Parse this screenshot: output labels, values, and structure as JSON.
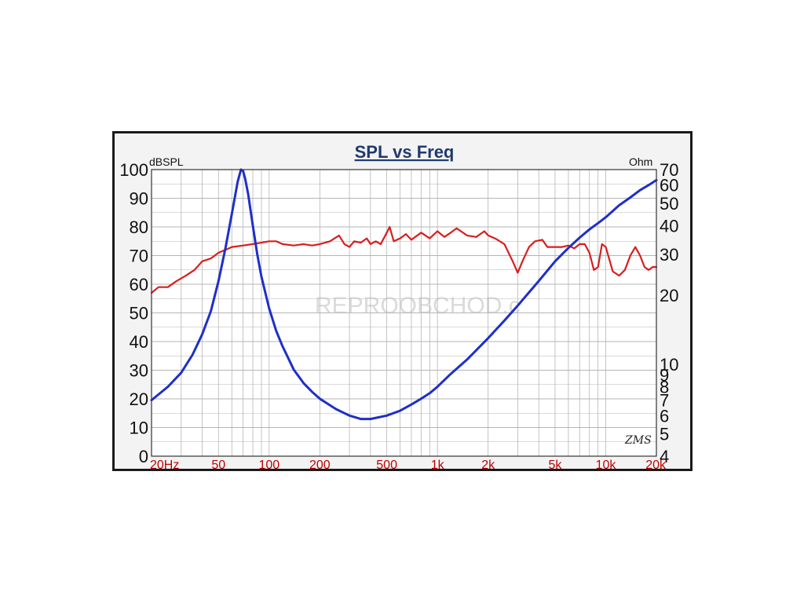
{
  "watermark": "REPROOBCHOD.c",
  "software_mark": "ZMS",
  "colors": {
    "spl": "#d81e1e",
    "impedance": "#1e2fc8",
    "title": "#1f3a6e",
    "xtick": "#c00000",
    "grid": "#b5b5b5"
  },
  "chart_data": {
    "type": "line",
    "title": "SPL vs Freq",
    "ylabel_left": "dBSPL",
    "ylabel_right": "Ohm",
    "x_scale": "log",
    "xlim": [
      20,
      20000
    ],
    "x_ticks": [
      20,
      50,
      100,
      200,
      500,
      1000,
      2000,
      5000,
      10000,
      20000
    ],
    "x_tick_labels": [
      "20Hz",
      "50",
      "100",
      "200",
      "500",
      "1k",
      "2k",
      "5k",
      "10k",
      "20k"
    ],
    "ylim_left": [
      0,
      100
    ],
    "y_ticks_left": [
      0,
      10,
      20,
      30,
      40,
      50,
      60,
      70,
      80,
      90,
      100
    ],
    "y_tick_labels_left": [
      "0",
      "10",
      "20",
      "30",
      "40",
      "50",
      "60",
      "70",
      "80",
      "90",
      "100"
    ],
    "y_scale_right": "log",
    "ylim_right": [
      4,
      70
    ],
    "y_ticks_right": [
      4,
      5,
      6,
      7,
      8,
      9,
      10,
      20,
      30,
      40,
      50,
      60,
      70
    ],
    "y_tick_labels_right": [
      "4",
      "5",
      "6",
      "7",
      "8",
      "9",
      "10",
      "20",
      "30",
      "40",
      "50",
      "60",
      "70"
    ],
    "grid": true,
    "series": [
      {
        "axis": "left",
        "color": "#d81e1e",
        "x": [
          20,
          22,
          25,
          28,
          32,
          36,
          40,
          45,
          50,
          55,
          60,
          70,
          80,
          90,
          100,
          110,
          120,
          140,
          160,
          180,
          200,
          230,
          260,
          280,
          300,
          320,
          350,
          380,
          400,
          430,
          460,
          500,
          520,
          550,
          600,
          650,
          700,
          800,
          900,
          1000,
          1100,
          1200,
          1300,
          1500,
          1700,
          1900,
          2000,
          2200,
          2500,
          2800,
          3000,
          3200,
          3500,
          3800,
          4200,
          4500,
          5000,
          5500,
          6000,
          6500,
          7000,
          7500,
          8000,
          8500,
          9000,
          9500,
          10000,
          11000,
          12000,
          13000,
          14000,
          15000,
          16000,
          17000,
          18000,
          19000,
          20000
        ],
        "values": [
          57,
          59,
          59,
          61,
          63,
          65,
          68,
          69,
          71,
          72,
          73,
          73.5,
          74,
          74.5,
          75,
          75,
          74,
          73.5,
          74,
          73.5,
          74,
          75,
          77,
          74,
          73,
          75,
          74.5,
          76,
          74,
          75,
          74,
          78,
          80,
          75,
          76,
          77.5,
          75.5,
          78,
          76,
          78.5,
          76.5,
          78,
          79.5,
          77,
          76.5,
          78.5,
          77,
          76,
          74,
          68,
          64,
          68,
          73,
          75,
          75.5,
          73,
          73,
          73,
          73.5,
          72.5,
          74,
          74,
          71,
          65,
          66,
          74,
          73,
          64.5,
          63,
          65,
          70,
          73,
          70,
          66,
          65,
          66,
          66
        ]
      },
      {
        "axis": "right",
        "color": "#1e2fc8",
        "x": [
          20,
          25,
          30,
          35,
          40,
          45,
          50,
          55,
          60,
          65,
          68,
          70,
          72,
          75,
          80,
          85,
          90,
          100,
          110,
          120,
          140,
          160,
          180,
          200,
          250,
          300,
          350,
          400,
          450,
          500,
          600,
          700,
          800,
          900,
          1000,
          1200,
          1500,
          2000,
          2500,
          3000,
          4000,
          5000,
          6000,
          7000,
          8000,
          9000,
          10000,
          12000,
          14000,
          16000,
          18000,
          20000
        ],
        "values": [
          7,
          8,
          9.2,
          11,
          13.5,
          17,
          23,
          32,
          45,
          62,
          70,
          69,
          64,
          55,
          40,
          30,
          24,
          17.5,
          14,
          12,
          9.5,
          8.3,
          7.6,
          7.1,
          6.4,
          6.0,
          5.8,
          5.8,
          5.9,
          6.0,
          6.3,
          6.7,
          7.1,
          7.5,
          8.0,
          9.1,
          10.5,
          13,
          15.5,
          18,
          23,
          28,
          32,
          35.5,
          38.5,
          41,
          43.5,
          49,
          53,
          57,
          60,
          63
        ]
      }
    ]
  }
}
